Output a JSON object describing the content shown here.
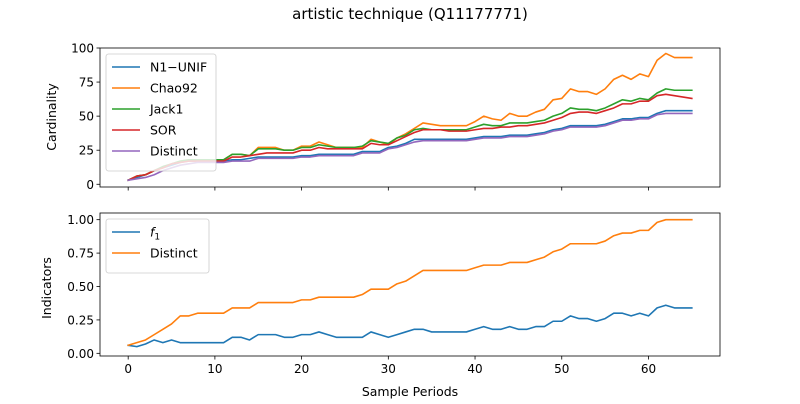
{
  "chart_data": [
    {
      "type": "line",
      "title": "artistic technique (Q11177771)",
      "xlabel": "",
      "ylabel": "Cardinality",
      "xlim": [
        -3.25,
        68.25
      ],
      "ylim": [
        -2,
        100
      ],
      "xticks": [
        0,
        10,
        20,
        30,
        40,
        50,
        60
      ],
      "yticks": [
        0,
        25,
        50,
        75,
        100
      ],
      "show_xtick_labels": false,
      "grid": false,
      "legend_position": "top-left",
      "x": [
        0,
        1,
        2,
        3,
        4,
        5,
        6,
        7,
        8,
        9,
        10,
        11,
        12,
        13,
        14,
        15,
        16,
        17,
        18,
        19,
        20,
        21,
        22,
        23,
        24,
        25,
        26,
        27,
        28,
        29,
        30,
        31,
        32,
        33,
        34,
        35,
        36,
        37,
        38,
        39,
        40,
        41,
        42,
        43,
        44,
        45,
        46,
        47,
        48,
        49,
        50,
        51,
        52,
        53,
        54,
        55,
        56,
        57,
        58,
        59,
        60,
        61,
        62,
        63,
        64,
        65
      ],
      "series": [
        {
          "name": "N1−UNIF",
          "color": "#1f77b4",
          "values": [
            3,
            5,
            7,
            10,
            12,
            14,
            16,
            17,
            17,
            17,
            17,
            17,
            18,
            18,
            19,
            20,
            20,
            20,
            20,
            20,
            21,
            21,
            22,
            22,
            22,
            22,
            22,
            24,
            24,
            24,
            27,
            28,
            30,
            33,
            33,
            33,
            33,
            33,
            33,
            33,
            34,
            35,
            35,
            35,
            36,
            36,
            36,
            37,
            38,
            40,
            41,
            43,
            43,
            43,
            43,
            44,
            46,
            48,
            48,
            49,
            49,
            52,
            54,
            54,
            54,
            54
          ]
        },
        {
          "name": "Chao92",
          "color": "#ff7f0e",
          "values": [
            3,
            6,
            7,
            10,
            12,
            15,
            17,
            18,
            18,
            18,
            18,
            18,
            22,
            22,
            21,
            27,
            27,
            27,
            25,
            25,
            28,
            28,
            31,
            29,
            27,
            27,
            27,
            27,
            33,
            31,
            29,
            34,
            37,
            41,
            45,
            44,
            43,
            43,
            43,
            43,
            46,
            50,
            48,
            47,
            52,
            50,
            50,
            53,
            55,
            62,
            63,
            70,
            68,
            68,
            66,
            70,
            77,
            80,
            77,
            81,
            79,
            91,
            96,
            93,
            93,
            93
          ]
        },
        {
          "name": "Jack1",
          "color": "#2ca02c",
          "values": [
            3,
            6,
            7,
            10,
            13,
            15,
            17,
            18,
            18,
            18,
            18,
            18,
            22,
            22,
            21,
            26,
            26,
            26,
            25,
            25,
            27,
            27,
            29,
            28,
            27,
            27,
            27,
            28,
            32,
            31,
            30,
            34,
            36,
            40,
            41,
            40,
            40,
            40,
            40,
            40,
            42,
            44,
            43,
            43,
            45,
            45,
            45,
            46,
            47,
            50,
            52,
            56,
            55,
            55,
            54,
            56,
            59,
            62,
            61,
            63,
            62,
            67,
            70,
            69,
            69,
            69
          ]
        },
        {
          "name": "SOR",
          "color": "#d62728",
          "values": [
            3,
            6,
            7,
            10,
            12,
            15,
            16,
            17,
            17,
            17,
            17,
            17,
            20,
            20,
            21,
            22,
            23,
            23,
            23,
            23,
            25,
            25,
            27,
            26,
            26,
            26,
            26,
            26,
            30,
            29,
            29,
            32,
            35,
            38,
            40,
            40,
            40,
            39,
            39,
            39,
            40,
            41,
            41,
            42,
            42,
            43,
            43,
            44,
            45,
            47,
            49,
            52,
            53,
            53,
            52,
            54,
            56,
            59,
            59,
            61,
            61,
            65,
            66,
            65,
            64,
            63
          ]
        },
        {
          "name": "Distinct",
          "color": "#9467bd",
          "values": [
            3,
            4,
            5,
            7,
            10,
            12,
            14,
            15,
            16,
            16,
            16,
            16,
            17,
            17,
            17,
            19,
            19,
            19,
            19,
            19,
            20,
            20,
            21,
            21,
            21,
            21,
            21,
            23,
            23,
            23,
            26,
            27,
            29,
            31,
            32,
            32,
            32,
            32,
            32,
            32,
            33,
            34,
            34,
            34,
            35,
            35,
            35,
            36,
            37,
            39,
            40,
            42,
            42,
            42,
            42,
            43,
            45,
            47,
            47,
            48,
            48,
            51,
            52,
            52,
            52,
            52
          ]
        }
      ]
    },
    {
      "type": "line",
      "title": "",
      "xlabel": "Sample Periods",
      "ylabel": "Indicators",
      "xlim": [
        -3.25,
        68.25
      ],
      "ylim": [
        -0.02,
        1.05
      ],
      "xticks": [
        0,
        10,
        20,
        30,
        40,
        50,
        60
      ],
      "yticks": [
        0.0,
        0.25,
        0.5,
        0.75,
        1.0
      ],
      "ytick_labels": [
        "0.00",
        "0.25",
        "0.50",
        "0.75",
        "1.00"
      ],
      "show_xtick_labels": true,
      "grid": false,
      "legend_position": "top-left",
      "x": [
        0,
        1,
        2,
        3,
        4,
        5,
        6,
        7,
        8,
        9,
        10,
        11,
        12,
        13,
        14,
        15,
        16,
        17,
        18,
        19,
        20,
        21,
        22,
        23,
        24,
        25,
        26,
        27,
        28,
        29,
        30,
        31,
        32,
        33,
        34,
        35,
        36,
        37,
        38,
        39,
        40,
        41,
        42,
        43,
        44,
        45,
        46,
        47,
        48,
        49,
        50,
        51,
        52,
        53,
        54,
        55,
        56,
        57,
        58,
        59,
        60,
        61,
        62,
        63,
        64,
        65
      ],
      "series": [
        {
          "name": "f1",
          "color": "#1f77b4",
          "values": [
            0.06,
            0.05,
            0.07,
            0.1,
            0.08,
            0.1,
            0.08,
            0.08,
            0.08,
            0.08,
            0.08,
            0.08,
            0.12,
            0.12,
            0.1,
            0.14,
            0.14,
            0.14,
            0.12,
            0.12,
            0.14,
            0.14,
            0.16,
            0.14,
            0.12,
            0.12,
            0.12,
            0.12,
            0.16,
            0.14,
            0.12,
            0.14,
            0.16,
            0.18,
            0.18,
            0.16,
            0.16,
            0.16,
            0.16,
            0.16,
            0.18,
            0.2,
            0.18,
            0.18,
            0.2,
            0.18,
            0.18,
            0.2,
            0.2,
            0.24,
            0.24,
            0.28,
            0.26,
            0.26,
            0.24,
            0.26,
            0.3,
            0.3,
            0.28,
            0.3,
            0.28,
            0.34,
            0.36,
            0.34,
            0.34,
            0.34
          ]
        },
        {
          "name": "Distinct",
          "color": "#ff7f0e",
          "values": [
            0.06,
            0.08,
            0.1,
            0.14,
            0.18,
            0.22,
            0.28,
            0.28,
            0.3,
            0.3,
            0.3,
            0.3,
            0.34,
            0.34,
            0.34,
            0.38,
            0.38,
            0.38,
            0.38,
            0.38,
            0.4,
            0.4,
            0.42,
            0.42,
            0.42,
            0.42,
            0.42,
            0.44,
            0.48,
            0.48,
            0.48,
            0.52,
            0.54,
            0.58,
            0.62,
            0.62,
            0.62,
            0.62,
            0.62,
            0.62,
            0.64,
            0.66,
            0.66,
            0.66,
            0.68,
            0.68,
            0.68,
            0.7,
            0.72,
            0.76,
            0.78,
            0.82,
            0.82,
            0.82,
            0.82,
            0.84,
            0.88,
            0.9,
            0.9,
            0.92,
            0.92,
            0.98,
            1.0,
            1.0,
            1.0,
            1.0
          ]
        }
      ]
    }
  ]
}
